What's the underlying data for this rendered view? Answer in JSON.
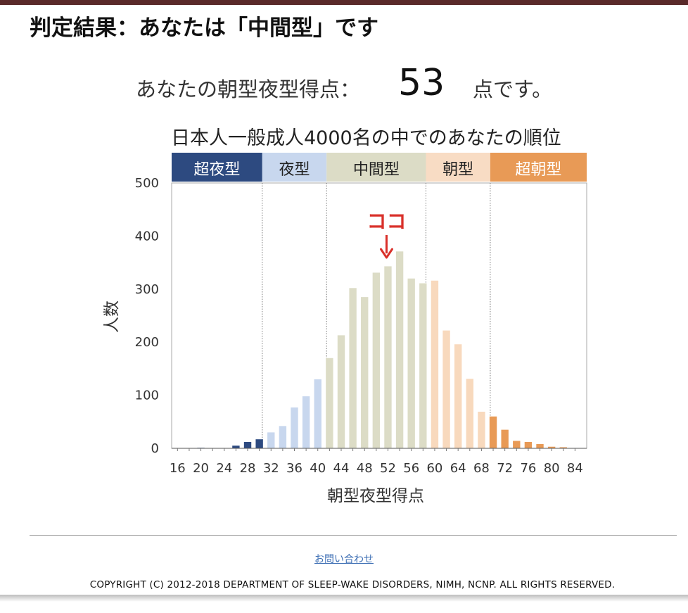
{
  "header": {
    "title": "判定結果：あなたは「中間型」です"
  },
  "score": {
    "prefix": "あなたの朝型夜型得点：",
    "value": "53",
    "suffix": "点です。"
  },
  "chart_data": {
    "type": "bar",
    "title": "日本人一般成人4000名の中でのあなたの順位",
    "xlabel": "朝型夜型得点",
    "ylabel": "人数",
    "ylim": [
      0,
      500
    ],
    "xlim": [
      15,
      86
    ],
    "yticks": [
      0,
      100,
      200,
      300,
      400,
      500
    ],
    "xticks": [
      16,
      20,
      24,
      28,
      32,
      36,
      40,
      44,
      48,
      52,
      56,
      60,
      64,
      68,
      72,
      76,
      80,
      84
    ],
    "grid": false,
    "categories_band": [
      {
        "label": "超夜型",
        "range": [
          15,
          30.5
        ],
        "color": "#2d4a80",
        "text_color": "#ffffff"
      },
      {
        "label": "夜型",
        "range": [
          30.5,
          41.5
        ],
        "color": "#c8d7ee",
        "text_color": "#222222"
      },
      {
        "label": "中間型",
        "range": [
          41.5,
          58.5
        ],
        "color": "#dcdcc6",
        "text_color": "#222222"
      },
      {
        "label": "朝型",
        "range": [
          58.5,
          69.5
        ],
        "color": "#f8dcc4",
        "text_color": "#222222"
      },
      {
        "label": "超朝型",
        "range": [
          69.5,
          86
        ],
        "color": "#e89a56",
        "text_color": "#ffffff"
      }
    ],
    "dividers": [
      30.5,
      41.5,
      58.5,
      69.5
    ],
    "x": [
      16,
      18,
      20,
      22,
      24,
      26,
      28,
      30,
      32,
      34,
      36,
      38,
      40,
      42,
      44,
      46,
      48,
      50,
      52,
      54,
      56,
      58,
      60,
      62,
      64,
      66,
      68,
      70,
      72,
      74,
      76,
      78,
      80,
      82,
      84
    ],
    "values": [
      0,
      0,
      1,
      0,
      0,
      5,
      12,
      17,
      30,
      42,
      77,
      98,
      130,
      170,
      213,
      302,
      285,
      331,
      343,
      371,
      320,
      311,
      316,
      222,
      196,
      131,
      69,
      60,
      35,
      14,
      12,
      8,
      3,
      2,
      0
    ],
    "bar_colors": [
      "#2d4a80",
      "#2d4a80",
      "#2d4a80",
      "#2d4a80",
      "#2d4a80",
      "#2d4a80",
      "#2d4a80",
      "#2d4a80",
      "#c8d7ee",
      "#c8d7ee",
      "#c8d7ee",
      "#c8d7ee",
      "#c8d7ee",
      "#dcdcc6",
      "#dcdcc6",
      "#dcdcc6",
      "#dcdcc6",
      "#dcdcc6",
      "#dcdcc6",
      "#dcdcc6",
      "#dcdcc6",
      "#dcdcc6",
      "#f8d9bd",
      "#f8d9bd",
      "#f8d9bd",
      "#f8d9bd",
      "#f8d9bd",
      "#e89a56",
      "#e89a56",
      "#e89a56",
      "#e89a56",
      "#e89a56",
      "#e89a56",
      "#e89a56",
      "#e89a56"
    ],
    "annotation": {
      "text": "ココ",
      "x": 52,
      "color": "#d9302a"
    }
  },
  "footer": {
    "contact": "お問い合わせ",
    "copyright": "COPYRIGHT (C) 2012-2018 DEPARTMENT OF SLEEP-WAKE DISORDERS, NIMH, NCNP. ALL RIGHTS RESERVED."
  }
}
